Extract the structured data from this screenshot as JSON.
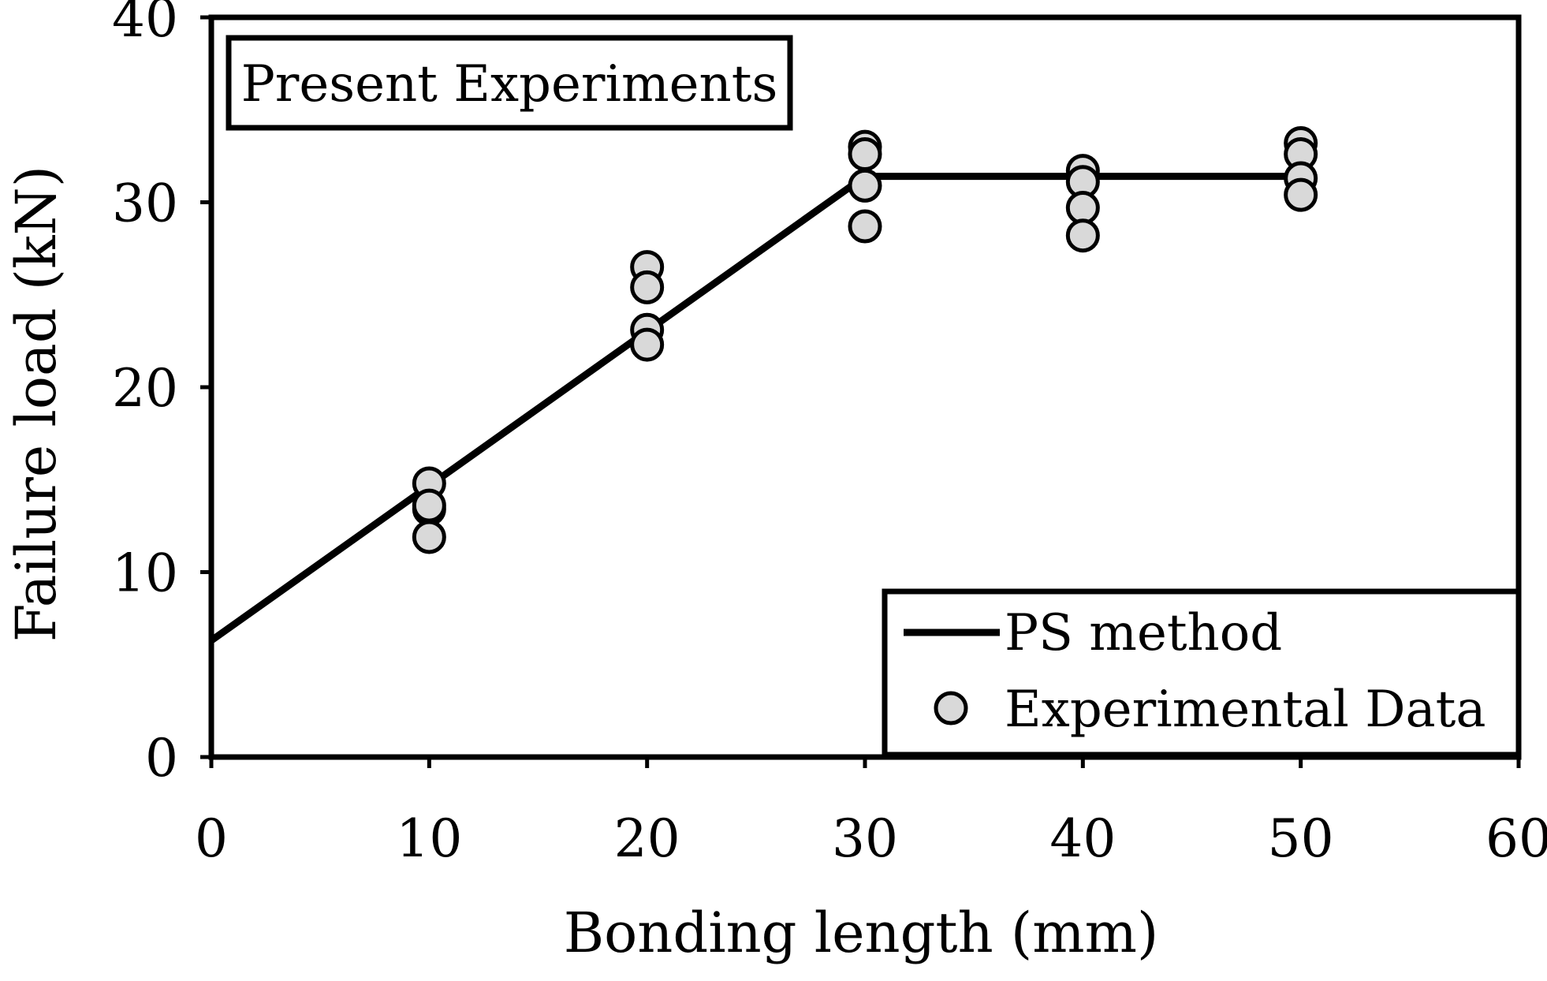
{
  "chart_data": {
    "type": "line+scatter",
    "annotation": "Present Experiments",
    "xlabel": "Bonding length (mm)",
    "ylabel": "Failure load (kN)",
    "xlim": [
      0,
      60
    ],
    "ylim": [
      0,
      40
    ],
    "xticks": [
      0,
      10,
      20,
      30,
      40,
      50,
      60
    ],
    "yticks": [
      0,
      10,
      20,
      30,
      40
    ],
    "series": [
      {
        "name": "PS method",
        "kind": "line",
        "x": [
          0,
          30,
          50
        ],
        "y": [
          6.3,
          31.4,
          31.4
        ]
      },
      {
        "name": "Experimental Data",
        "kind": "scatter",
        "x": [
          10,
          10,
          10,
          10,
          20,
          20,
          20,
          20,
          30,
          30,
          30,
          30,
          40,
          40,
          40,
          40,
          50,
          50,
          50,
          50
        ],
        "y": [
          14.8,
          13.4,
          11.9,
          13.6,
          26.5,
          25.4,
          23.1,
          22.3,
          33.0,
          32.6,
          30.9,
          28.7,
          31.7,
          31.1,
          29.7,
          28.2,
          33.2,
          32.6,
          31.3,
          30.4
        ]
      }
    ],
    "legend": {
      "position": "bottom-right",
      "labels": [
        "PS method",
        "Experimental Data"
      ]
    },
    "colors": {
      "line": "#000000",
      "marker_fill": "#d9d9d9",
      "marker_stroke": "#000000"
    }
  }
}
